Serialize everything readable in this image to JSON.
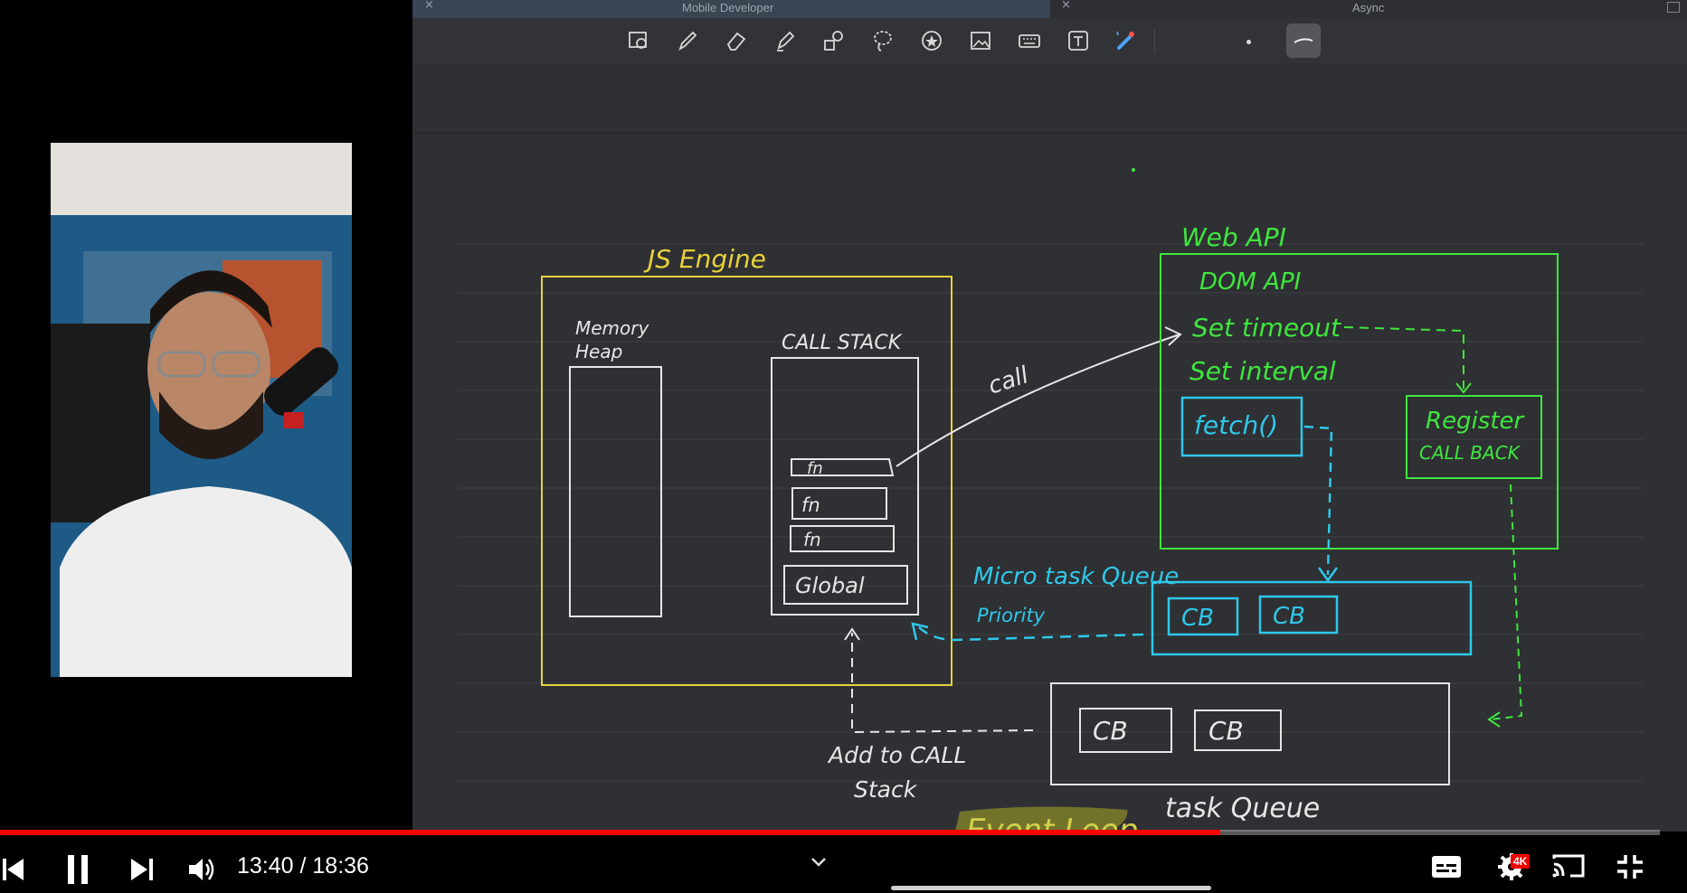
{
  "tabs": [
    {
      "label": "Mobile Developer"
    },
    {
      "label": "Async"
    }
  ],
  "toolbar": {
    "tools": [
      "image-edit-icon",
      "pen-icon",
      "eraser-icon",
      "highlighter-icon",
      "shapes-icon",
      "lasso-icon",
      "sticker-icon",
      "image-icon",
      "keyboard-icon",
      "text-icon",
      "laser-pointer-icon"
    ]
  },
  "diagram": {
    "js_engine": "JS Engine",
    "memory_heap_1": "Memory",
    "memory_heap_2": "Heap",
    "call_stack": "CALL STACK",
    "stack_frames": [
      "fn",
      "fn",
      "fn",
      "Global"
    ],
    "call_label": "call",
    "web_api": "Web API",
    "web_api_items": [
      "DOM API",
      "Set timeout",
      "Set interval"
    ],
    "fetch": "fetch()",
    "register_1": "Register",
    "register_2": "CALL BACK",
    "microtask_queue": "Micro task Queue",
    "priority": "Priority",
    "micro_cbs": [
      "CB",
      "CB"
    ],
    "task_cbs": [
      "CB",
      "CB"
    ],
    "add_to_stack_1": "Add to CALL",
    "add_to_stack_2": "Stack",
    "task_queue": "task Queue",
    "event_loop": "Event Loop"
  },
  "player": {
    "time": "13:40 / 18:36",
    "progress_fraction": 0.735,
    "quality_badge": "4K"
  },
  "colors": {
    "engine": "#e8d23a",
    "webapi": "#3ee63e",
    "micro": "#2ec8ea",
    "chalk": "#e6e6e6",
    "progress": "#ff0000"
  }
}
